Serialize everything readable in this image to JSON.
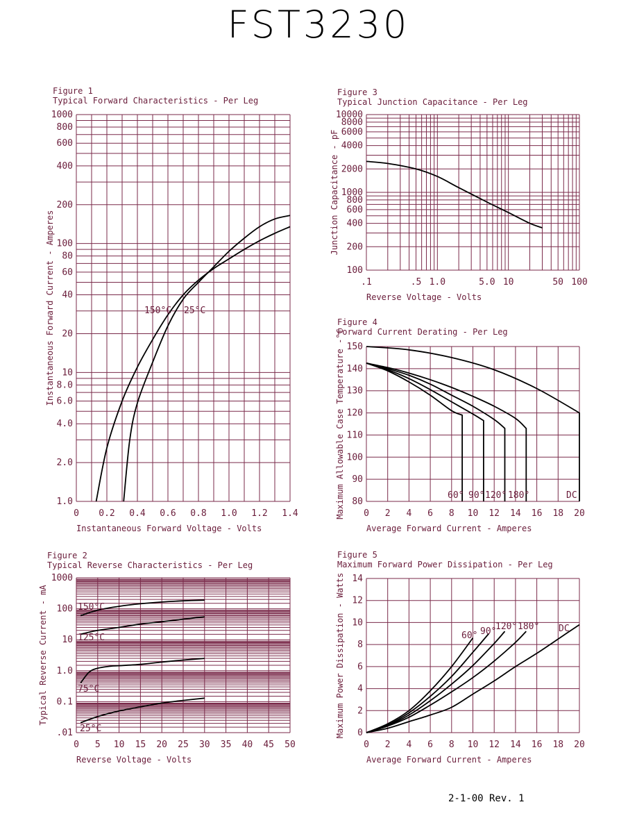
{
  "header": {
    "part_number": "FST3230"
  },
  "footer": {
    "revision": "2-1-00   Rev. 1"
  },
  "chart_data": [
    {
      "id": "fig1",
      "type": "line",
      "figure_label": "Figure 1",
      "title": "Typical Forward Characteristics - Per Leg",
      "xlabel": "Instantaneous Forward Voltage - Volts",
      "ylabel": "Instantaneous Forward Current - Amperes",
      "xlim": [
        0,
        1.4
      ],
      "ylim": [
        1,
        1000
      ],
      "yscale": "log",
      "x_ticks": [
        "0",
        "0.2",
        "0.4",
        "0.6",
        "0.8",
        "1.0",
        "1.2",
        "1.4"
      ],
      "y_ticks": [
        "1.0",
        "2.0",
        "4.0",
        "6.0",
        "8.0",
        "10",
        "20",
        "40",
        "60",
        "80",
        "100",
        "200",
        "400",
        "600",
        "800",
        "1000"
      ],
      "series": [
        {
          "name": "150°C",
          "x": [
            0.13,
            0.2,
            0.3,
            0.4,
            0.5,
            0.6,
            0.7,
            0.8,
            0.9,
            1.0,
            1.1,
            1.2,
            1.3,
            1.4
          ],
          "y": [
            1.0,
            2.6,
            6.0,
            11,
            18,
            28,
            40,
            52,
            64,
            76,
            90,
            105,
            120,
            135
          ]
        },
        {
          "name": "25°C",
          "x": [
            0.31,
            0.35,
            0.4,
            0.5,
            0.6,
            0.7,
            0.8,
            0.9,
            1.0,
            1.1,
            1.2,
            1.3,
            1.4
          ],
          "y": [
            1.0,
            3.0,
            5.8,
            12,
            23,
            37,
            50,
            66,
            87,
            110,
            135,
            155,
            165
          ]
        }
      ],
      "grid": true
    },
    {
      "id": "fig2",
      "type": "line",
      "figure_label": "Figure 2",
      "title": "Typical Reverse Characteristics - Per Leg",
      "xlabel": "Reverse Voltage - Volts",
      "ylabel": "Typical Reverse Current - mA",
      "xlim": [
        0,
        50
      ],
      "ylim": [
        0.01,
        1000
      ],
      "yscale": "log",
      "x_ticks": [
        "0",
        "5",
        "10",
        "15",
        "20",
        "25",
        "30",
        "35",
        "40",
        "45",
        "50"
      ],
      "y_ticks": [
        ".01",
        "0.1",
        "1.0",
        "10",
        "100",
        "1000"
      ],
      "series": [
        {
          "name": "150°C",
          "x": [
            1,
            5,
            10,
            15,
            20,
            25,
            30
          ],
          "y": [
            60,
            90,
            120,
            145,
            165,
            180,
            190
          ]
        },
        {
          "name": "125°C",
          "x": [
            1,
            5,
            10,
            15,
            20,
            25,
            30
          ],
          "y": [
            15,
            20,
            25,
            32,
            38,
            46,
            55
          ]
        },
        {
          "name": "75°C",
          "x": [
            1,
            3,
            5,
            8,
            10,
            15,
            20,
            25,
            30
          ],
          "y": [
            0.4,
            0.9,
            1.2,
            1.4,
            1.45,
            1.6,
            1.9,
            2.2,
            2.5
          ]
        },
        {
          "name": "25°C",
          "x": [
            1,
            5,
            10,
            15,
            20,
            25,
            30
          ],
          "y": [
            0.021,
            0.033,
            0.05,
            0.068,
            0.09,
            0.11,
            0.13
          ]
        }
      ],
      "grid": true
    },
    {
      "id": "fig3",
      "type": "line",
      "figure_label": "Figure 3",
      "title": "Typical Junction Capacitance - Per Leg",
      "xlabel": "Reverse Voltage - Volts",
      "ylabel": "Junction Capacitance - pF",
      "xlim": [
        0.1,
        100
      ],
      "ylim": [
        100,
        10000
      ],
      "xscale": "log",
      "yscale": "log",
      "x_ticks": [
        ".1",
        ".5",
        "1.0",
        "5.0",
        "10",
        "50",
        "100"
      ],
      "y_ticks": [
        "100",
        "200",
        "400",
        "600",
        "800",
        "1000",
        "2000",
        "4000",
        "6000",
        "8000",
        "10000"
      ],
      "series": [
        {
          "name": "",
          "x": [
            0.1,
            0.2,
            0.5,
            1.0,
            2.0,
            5.0,
            10,
            20,
            30
          ],
          "y": [
            2500,
            2350,
            2000,
            1600,
            1150,
            750,
            550,
            400,
            350
          ]
        }
      ],
      "grid": true
    },
    {
      "id": "fig4",
      "type": "line",
      "figure_label": "Figure 4",
      "title": "Forward Current Derating - Per Leg",
      "xlabel": "Average Forward Current - Amperes",
      "ylabel": "Maximum Allowable Case Temperature -°C",
      "xlim": [
        0,
        20
      ],
      "ylim": [
        80,
        150
      ],
      "x_ticks": [
        "0",
        "2",
        "4",
        "6",
        "8",
        "10",
        "12",
        "14",
        "16",
        "18",
        "20"
      ],
      "y_ticks": [
        "80",
        "90",
        "100",
        "110",
        "120",
        "130",
        "140",
        "150"
      ],
      "series": [
        {
          "name": "60°",
          "x": [
            0,
            2,
            4,
            6,
            8,
            9,
            9
          ],
          "y": [
            142.5,
            139,
            134,
            128,
            121,
            119,
            80
          ]
        },
        {
          "name": "90°",
          "x": [
            0,
            2,
            4,
            6,
            8,
            10,
            11,
            11
          ],
          "y": [
            142.5,
            139.5,
            135.5,
            130.5,
            125,
            119.5,
            116.5,
            80
          ]
        },
        {
          "name": "120°",
          "x": [
            0,
            2,
            4,
            6,
            8,
            10,
            12,
            13,
            13
          ],
          "y": [
            142.5,
            140,
            137,
            133,
            128,
            123,
            117,
            113,
            80
          ]
        },
        {
          "name": "180°",
          "x": [
            0,
            2,
            4,
            6,
            8,
            10,
            12,
            14,
            15,
            15
          ],
          "y": [
            142.5,
            140.5,
            138,
            135,
            131.5,
            127.5,
            123,
            117.5,
            113,
            80
          ]
        },
        {
          "name": "DC",
          "x": [
            0,
            4,
            8,
            12,
            16,
            20,
            20
          ],
          "y": [
            150,
            148.5,
            145,
            139.5,
            131,
            120,
            80
          ]
        }
      ],
      "grid": true
    },
    {
      "id": "fig5",
      "type": "line",
      "figure_label": "Figure 5",
      "title": "Maximum Forward Power Dissipation - Per Leg",
      "xlabel": "Average Forward Current - Amperes",
      "ylabel": "Maximum Power Dissipation - Watts",
      "xlim": [
        0,
        20
      ],
      "ylim": [
        0,
        14
      ],
      "x_ticks": [
        "0",
        "2",
        "4",
        "6",
        "8",
        "10",
        "12",
        "14",
        "16",
        "18",
        "20"
      ],
      "y_ticks": [
        "0",
        "2",
        "4",
        "6",
        "8",
        "10",
        "12",
        "14"
      ],
      "series": [
        {
          "name": "60°",
          "x": [
            0,
            2,
            4,
            6,
            8,
            10
          ],
          "y": [
            0,
            0.8,
            2.0,
            3.8,
            6.0,
            8.6
          ]
        },
        {
          "name": "90°",
          "x": [
            0,
            2,
            4,
            6,
            8,
            10,
            11.5
          ],
          "y": [
            0,
            0.7,
            1.8,
            3.3,
            5.1,
            7.3,
            9.0
          ]
        },
        {
          "name": "120°",
          "x": [
            0,
            2,
            4,
            6,
            8,
            10,
            12,
            13
          ],
          "y": [
            0,
            0.65,
            1.6,
            2.9,
            4.4,
            6.1,
            8.1,
            9.2
          ]
        },
        {
          "name": "180°",
          "x": [
            0,
            2,
            4,
            6,
            8,
            10,
            12,
            14,
            15
          ],
          "y": [
            0,
            0.6,
            1.4,
            2.5,
            3.7,
            5.0,
            6.5,
            8.2,
            9.2
          ]
        },
        {
          "name": "DC",
          "x": [
            0,
            2,
            4,
            6,
            8,
            10,
            12,
            14,
            16,
            18,
            20
          ],
          "y": [
            0,
            0.4,
            1.0,
            1.6,
            2.3,
            3.5,
            4.7,
            6.0,
            7.2,
            8.5,
            9.8
          ]
        }
      ],
      "grid": true
    }
  ]
}
